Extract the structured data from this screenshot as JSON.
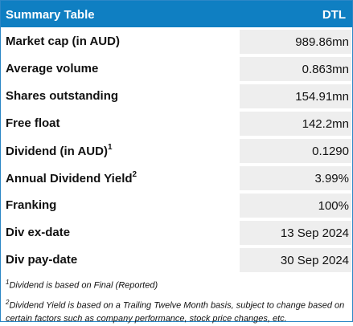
{
  "header": {
    "title": "Summary Table",
    "ticker": "DTL"
  },
  "rows": [
    {
      "label": "Market cap (in AUD)",
      "sup": "",
      "value": "989.86mn"
    },
    {
      "label": "Average volume",
      "sup": "",
      "value": "0.863mn"
    },
    {
      "label": "Shares outstanding",
      "sup": "",
      "value": "154.91mn"
    },
    {
      "label": "Free float",
      "sup": "",
      "value": "142.2mn"
    },
    {
      "label": "Dividend (in AUD)",
      "sup": "1",
      "value": "0.1290"
    },
    {
      "label": "Annual Dividend Yield",
      "sup": "2",
      "value": "3.99%"
    },
    {
      "label": "Franking",
      "sup": "",
      "value": "100%"
    },
    {
      "label": "Div ex-date",
      "sup": "",
      "value": "13 Sep 2024"
    },
    {
      "label": "Div pay-date",
      "sup": "",
      "value": "30 Sep 2024"
    }
  ],
  "footnotes": [
    {
      "mark": "1",
      "text": "Dividend is based on Final (Reported)"
    },
    {
      "mark": "2",
      "text": "Dividend Yield is based on a Trailing Twelve Month basis, subject to change based on certain factors such as company performance, stock price changes, etc."
    }
  ],
  "colors": {
    "header_bg": "#0f7fc2",
    "border": "#2b87c6",
    "value_cell_bg": "#eeeeee"
  }
}
